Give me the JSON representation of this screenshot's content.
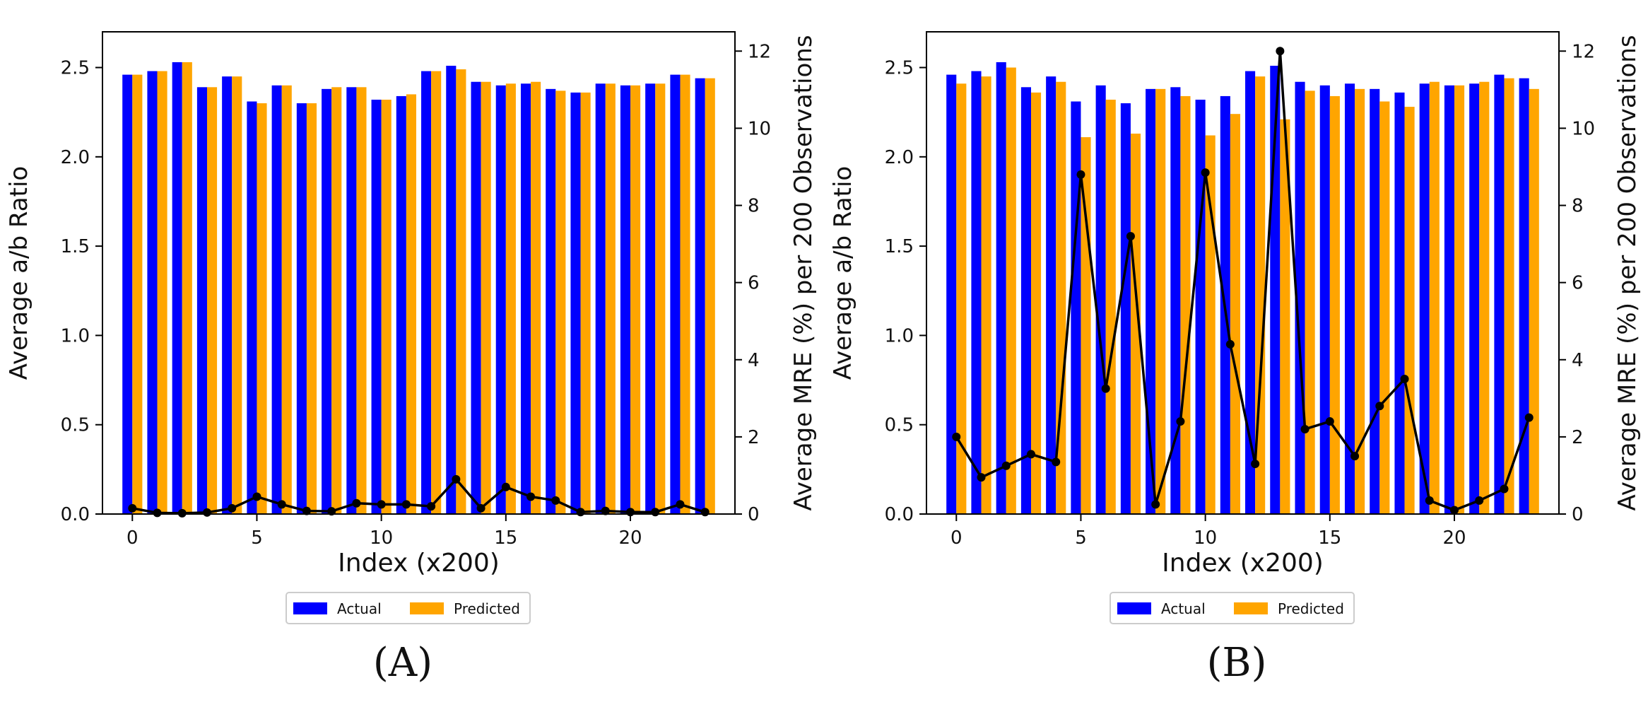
{
  "colors": {
    "actual": "#0000ff",
    "predicted": "#ffa500",
    "mre_line": "#000000",
    "axis": "#000000",
    "background": "#ffffff"
  },
  "panel_labels": [
    "(A)",
    "(B)"
  ],
  "chart_data": [
    {
      "type": "bar",
      "panel": "A",
      "title": "",
      "xlabel": "Index (x200)",
      "ylabel": "Average a/b Ratio",
      "y2label": "Average MRE (%) per 200 Observations",
      "x": [
        0,
        1,
        2,
        3,
        4,
        5,
        6,
        7,
        8,
        9,
        10,
        11,
        12,
        13,
        14,
        15,
        16,
        17,
        18,
        19,
        20,
        21,
        22,
        23
      ],
      "xticks": [
        0,
        5,
        10,
        15,
        20
      ],
      "ylim": [
        0,
        2.7
      ],
      "yticks": [
        0.0,
        0.5,
        1.0,
        1.5,
        2.0,
        2.5
      ],
      "y2lim": [
        0,
        12.5
      ],
      "y2ticks": [
        0,
        2,
        4,
        6,
        8,
        10,
        12
      ],
      "legend": [
        "Actual",
        "Predicted"
      ],
      "legend_position": "below",
      "series": [
        {
          "name": "Actual",
          "axis": "left",
          "values": [
            2.46,
            2.48,
            2.53,
            2.39,
            2.45,
            2.31,
            2.4,
            2.3,
            2.38,
            2.39,
            2.32,
            2.34,
            2.48,
            2.51,
            2.42,
            2.4,
            2.41,
            2.38,
            2.36,
            2.41,
            2.4,
            2.41,
            2.46,
            2.44
          ]
        },
        {
          "name": "Predicted",
          "axis": "left",
          "values": [
            2.46,
            2.48,
            2.53,
            2.39,
            2.45,
            2.3,
            2.4,
            2.3,
            2.39,
            2.39,
            2.32,
            2.35,
            2.48,
            2.49,
            2.42,
            2.41,
            2.42,
            2.37,
            2.36,
            2.41,
            2.4,
            2.41,
            2.46,
            2.44
          ]
        },
        {
          "name": "Average MRE",
          "axis": "right",
          "kind": "line",
          "values": [
            0.15,
            0.03,
            0.02,
            0.04,
            0.15,
            0.45,
            0.25,
            0.08,
            0.07,
            0.28,
            0.25,
            0.25,
            0.2,
            0.9,
            0.15,
            0.7,
            0.45,
            0.35,
            0.05,
            0.08,
            0.05,
            0.05,
            0.25,
            0.05
          ]
        }
      ]
    },
    {
      "type": "bar",
      "panel": "B",
      "title": "",
      "xlabel": "Index (x200)",
      "ylabel": "Average a/b Ratio",
      "y2label": "Average MRE (%) per 200 Observations",
      "x": [
        0,
        1,
        2,
        3,
        4,
        5,
        6,
        7,
        8,
        9,
        10,
        11,
        12,
        13,
        14,
        15,
        16,
        17,
        18,
        19,
        20,
        21,
        22,
        23
      ],
      "xticks": [
        0,
        5,
        10,
        15,
        20
      ],
      "ylim": [
        0,
        2.7
      ],
      "yticks": [
        0.0,
        0.5,
        1.0,
        1.5,
        2.0,
        2.5
      ],
      "y2lim": [
        0,
        12.5
      ],
      "y2ticks": [
        0,
        2,
        4,
        6,
        8,
        10,
        12
      ],
      "legend": [
        "Actual",
        "Predicted"
      ],
      "legend_position": "below",
      "series": [
        {
          "name": "Actual",
          "axis": "left",
          "values": [
            2.46,
            2.48,
            2.53,
            2.39,
            2.45,
            2.31,
            2.4,
            2.3,
            2.38,
            2.39,
            2.32,
            2.34,
            2.48,
            2.51,
            2.42,
            2.4,
            2.41,
            2.38,
            2.36,
            2.41,
            2.4,
            2.41,
            2.46,
            2.44
          ]
        },
        {
          "name": "Predicted",
          "axis": "left",
          "values": [
            2.41,
            2.45,
            2.5,
            2.36,
            2.42,
            2.11,
            2.32,
            2.13,
            2.38,
            2.34,
            2.12,
            2.24,
            2.45,
            2.21,
            2.37,
            2.34,
            2.38,
            2.31,
            2.28,
            2.42,
            2.4,
            2.42,
            2.44,
            2.38
          ]
        },
        {
          "name": "Average MRE",
          "axis": "right",
          "kind": "line",
          "values": [
            2.0,
            0.95,
            1.25,
            1.55,
            1.35,
            8.8,
            3.25,
            7.2,
            0.25,
            2.4,
            8.85,
            4.4,
            1.3,
            12.0,
            2.2,
            2.4,
            1.5,
            2.8,
            3.5,
            0.35,
            0.1,
            0.35,
            0.65,
            2.5
          ]
        }
      ]
    }
  ]
}
